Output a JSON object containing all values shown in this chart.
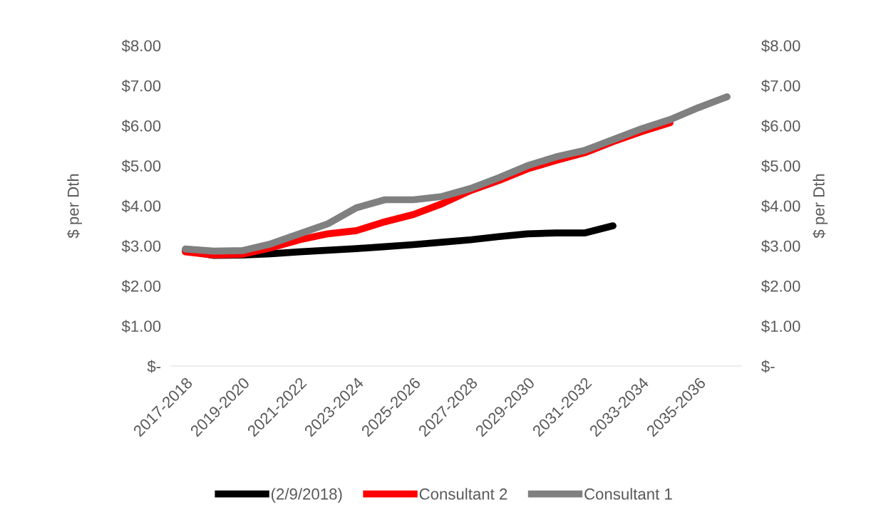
{
  "chart_data": {
    "type": "line",
    "categories": [
      "2017-2018",
      null,
      "2019-2020",
      null,
      "2021-2022",
      null,
      "2023-2024",
      null,
      "2025-2026",
      null,
      "2027-2028",
      null,
      "2029-2030",
      null,
      "2031-2032",
      null,
      "2033-2034",
      null,
      "2035-2036",
      null
    ],
    "series": [
      {
        "name": "(2/9/2018)",
        "color": "#000000",
        "values": [
          2.88,
          2.76,
          2.77,
          2.8,
          2.85,
          2.89,
          2.93,
          2.98,
          3.03,
          3.09,
          3.15,
          3.23,
          3.3,
          3.32,
          3.32,
          3.5,
          null,
          null,
          null,
          null
        ]
      },
      {
        "name": "Consultant 2",
        "color": "#ff0000",
        "values": [
          2.85,
          2.77,
          2.79,
          2.95,
          3.15,
          3.3,
          3.38,
          3.6,
          3.78,
          4.05,
          4.38,
          4.63,
          4.92,
          5.13,
          5.32,
          5.6,
          5.85,
          6.07,
          null,
          null
        ]
      },
      {
        "name": "Consultant 1",
        "color": "#808080",
        "values": [
          2.92,
          2.87,
          2.88,
          3.05,
          3.3,
          3.55,
          3.95,
          4.15,
          4.15,
          4.23,
          4.43,
          4.7,
          5.0,
          5.22,
          5.38,
          5.65,
          5.92,
          6.15,
          6.45,
          6.72
        ]
      }
    ],
    "ylabel": "$ per Dth",
    "y2label": "$ per Dth",
    "ylim": [
      0,
      8
    ],
    "yticks": [
      {
        "value": 0,
        "label": "$-"
      },
      {
        "value": 1,
        "label": "$1.00"
      },
      {
        "value": 2,
        "label": "$2.00"
      },
      {
        "value": 3,
        "label": "$3.00"
      },
      {
        "value": 4,
        "label": "$4.00"
      },
      {
        "value": 5,
        "label": "$5.00"
      },
      {
        "value": 6,
        "label": "$6.00"
      },
      {
        "value": 7,
        "label": "$7.00"
      },
      {
        "value": 8,
        "label": "$8.00"
      }
    ],
    "y2lim": [
      0,
      8
    ],
    "y2ticks": [
      {
        "value": 0,
        "label": "$-"
      },
      {
        "value": 1,
        "label": "$1.00"
      },
      {
        "value": 2,
        "label": "$2.00"
      },
      {
        "value": 3,
        "label": "$3.00"
      },
      {
        "value": 4,
        "label": "$4.00"
      },
      {
        "value": 5,
        "label": "$5.00"
      },
      {
        "value": 6,
        "label": "$6.00"
      },
      {
        "value": 7,
        "label": "$7.00"
      },
      {
        "value": 8,
        "label": "$8.00"
      }
    ],
    "legend": "bottom",
    "grid": false
  }
}
